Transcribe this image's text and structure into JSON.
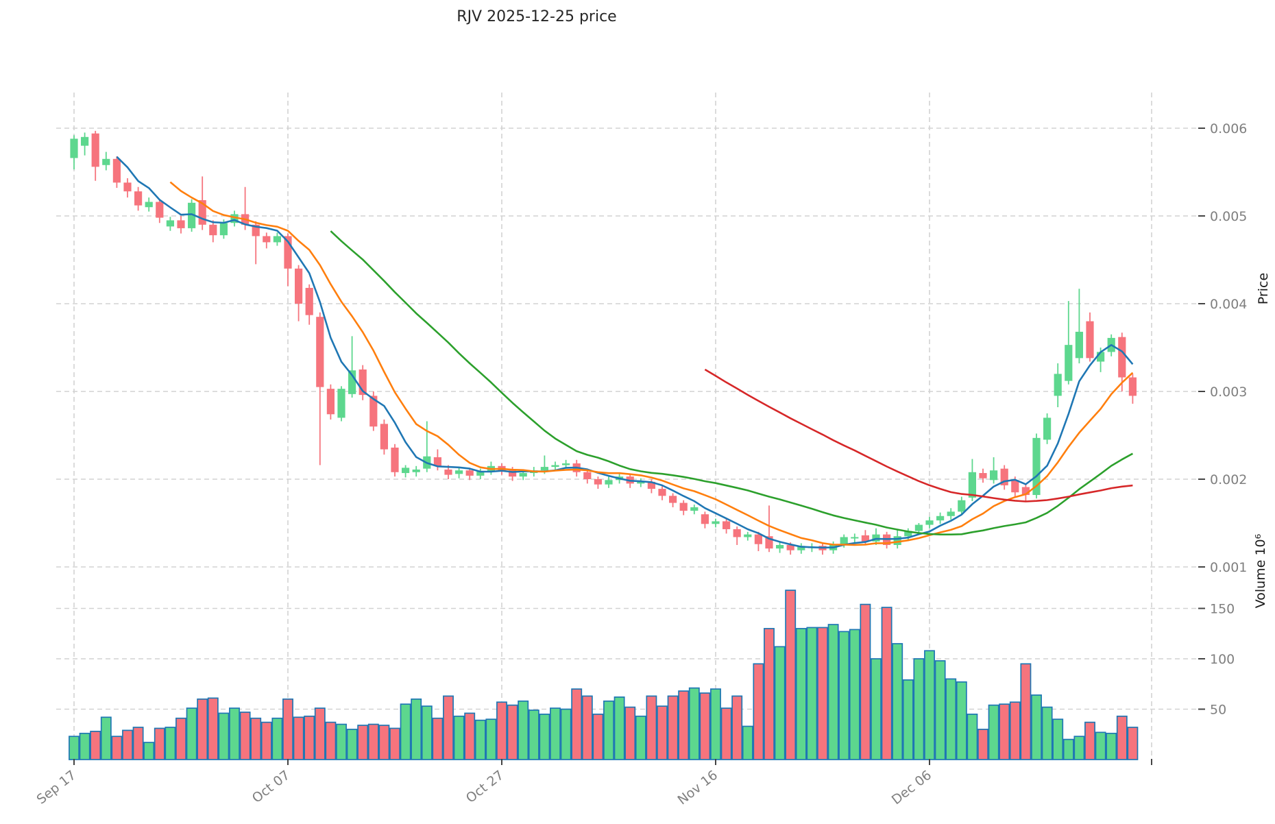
{
  "title": "RJV  2025-12-25  price",
  "chart_data": {
    "type": "candlestick",
    "title": "RJV  2025-12-25  price",
    "ylabel_price": "Price",
    "ylabel_volume": "Volume  10⁶",
    "x_tick_labels": [
      "Sep 17",
      "Oct 07",
      "Oct 27",
      "Nov 16",
      "Dec 06"
    ],
    "x_tick_indices": [
      0,
      20,
      40,
      60,
      80
    ],
    "price_tick_labels": [
      "0.006",
      "0.005",
      "0.004",
      "0.003",
      "0.002",
      "0.001"
    ],
    "price_tick_values": [
      0.006,
      0.005,
      0.004,
      0.003,
      0.002,
      0.001
    ],
    "volume_tick_labels": [
      "150",
      "100",
      "50"
    ],
    "volume_tick_values": [
      150,
      100,
      50
    ],
    "grid": true,
    "legend": "none",
    "x_range_bars": 100,
    "price_axis_range": [
      0.001,
      0.006
    ],
    "open": [
      0.00566,
      0.0058,
      0.00594,
      0.00558,
      0.00565,
      0.00538,
      0.00528,
      0.0051,
      0.00516,
      0.00488,
      0.00495,
      0.00486,
      0.00518,
      0.0049,
      0.00478,
      0.00492,
      0.00502,
      0.0049,
      0.00477,
      0.0047,
      0.00477,
      0.0044,
      0.00418,
      0.00385,
      0.00303,
      0.0027,
      0.00297,
      0.00325,
      0.00295,
      0.00263,
      0.00236,
      0.00207,
      0.00208,
      0.00212,
      0.00225,
      0.00211,
      0.00206,
      0.0021,
      0.00204,
      0.00209,
      0.00215,
      0.0021,
      0.00203,
      0.00207,
      0.0021,
      0.00214,
      0.00216,
      0.00218,
      0.00208,
      0.002,
      0.00194,
      0.00199,
      0.00203,
      0.00195,
      0.00197,
      0.00189,
      0.00181,
      0.00173,
      0.00164,
      0.0016,
      0.00149,
      0.00152,
      0.00143,
      0.00134,
      0.00137,
      0.00135,
      0.00121,
      0.00125,
      0.00119,
      0.00122,
      0.00124,
      0.00119,
      0.00126,
      0.00133,
      0.00136,
      0.00129,
      0.00137,
      0.00125,
      0.00135,
      0.00141,
      0.00148,
      0.00153,
      0.00158,
      0.00163,
      0.00179,
      0.00207,
      0.00199,
      0.00212,
      0.00199,
      0.00191,
      0.00182,
      0.00245,
      0.00295,
      0.00312,
      0.00338,
      0.0038,
      0.00334,
      0.00345,
      0.00362,
      0.00316
    ],
    "high": [
      0.00592,
      0.00595,
      0.00597,
      0.00573,
      0.00568,
      0.00543,
      0.00533,
      0.00521,
      0.00519,
      0.00499,
      0.005,
      0.00519,
      0.00545,
      0.00495,
      0.00496,
      0.00506,
      0.00533,
      0.00494,
      0.00481,
      0.00481,
      0.0048,
      0.00444,
      0.00422,
      0.0039,
      0.00308,
      0.00306,
      0.00363,
      0.0033,
      0.003,
      0.00268,
      0.0024,
      0.00216,
      0.00215,
      0.00266,
      0.00234,
      0.00216,
      0.00213,
      0.00213,
      0.00212,
      0.0022,
      0.00218,
      0.00214,
      0.0021,
      0.00214,
      0.00227,
      0.0022,
      0.00222,
      0.00222,
      0.00211,
      0.00203,
      0.00203,
      0.00207,
      0.00206,
      0.00201,
      0.002,
      0.00192,
      0.00184,
      0.00176,
      0.00171,
      0.00163,
      0.00155,
      0.00155,
      0.00146,
      0.0014,
      0.0014,
      0.0017,
      0.00128,
      0.00128,
      0.00127,
      0.00127,
      0.00127,
      0.00129,
      0.00137,
      0.00138,
      0.00142,
      0.00144,
      0.0014,
      0.00142,
      0.00144,
      0.0015,
      0.00157,
      0.00162,
      0.00167,
      0.0018,
      0.00223,
      0.00212,
      0.00225,
      0.00216,
      0.00203,
      0.00195,
      0.00252,
      0.00275,
      0.00332,
      0.00403,
      0.00417,
      0.0039,
      0.0035,
      0.00365,
      0.00367,
      0.0032
    ],
    "low": [
      0.00553,
      0.00569,
      0.0054,
      0.00552,
      0.00532,
      0.00521,
      0.00506,
      0.00505,
      0.00492,
      0.00483,
      0.0048,
      0.00482,
      0.00484,
      0.0047,
      0.00474,
      0.00488,
      0.00484,
      0.00445,
      0.00463,
      0.00466,
      0.0042,
      0.0038,
      0.00376,
      0.00216,
      0.00268,
      0.00266,
      0.00293,
      0.0029,
      0.00255,
      0.00228,
      0.00203,
      0.00202,
      0.00203,
      0.00208,
      0.0021,
      0.002,
      0.00201,
      0.00199,
      0.002,
      0.00205,
      0.00205,
      0.00198,
      0.00199,
      0.00203,
      0.00206,
      0.0021,
      0.00212,
      0.00203,
      0.00195,
      0.00189,
      0.0019,
      0.00195,
      0.0019,
      0.00191,
      0.00184,
      0.00176,
      0.00168,
      0.00159,
      0.0016,
      0.00144,
      0.00145,
      0.00138,
      0.00125,
      0.0013,
      0.00118,
      0.00117,
      0.00116,
      0.00114,
      0.00115,
      0.00117,
      0.00114,
      0.00115,
      0.00122,
      0.00128,
      0.00125,
      0.00125,
      0.00121,
      0.00121,
      0.00131,
      0.00137,
      0.00144,
      0.00149,
      0.00154,
      0.00159,
      0.00175,
      0.00196,
      0.00195,
      0.00188,
      0.0018,
      0.00175,
      0.00178,
      0.0024,
      0.00282,
      0.00308,
      0.00332,
      0.00334,
      0.00322,
      0.0034,
      0.003,
      0.00286
    ],
    "close": [
      0.00588,
      0.0059,
      0.00556,
      0.00565,
      0.00538,
      0.00528,
      0.00512,
      0.00516,
      0.00498,
      0.00495,
      0.00486,
      0.00515,
      0.0049,
      0.00478,
      0.00492,
      0.00502,
      0.0049,
      0.00477,
      0.0047,
      0.00477,
      0.0044,
      0.004,
      0.00387,
      0.00305,
      0.00274,
      0.00303,
      0.00324,
      0.00296,
      0.0026,
      0.00234,
      0.00208,
      0.00213,
      0.00211,
      0.00226,
      0.00215,
      0.00205,
      0.0021,
      0.00204,
      0.00209,
      0.00215,
      0.0021,
      0.00203,
      0.00207,
      0.0021,
      0.00214,
      0.00216,
      0.00218,
      0.00208,
      0.002,
      0.00194,
      0.00199,
      0.00203,
      0.00195,
      0.00197,
      0.00189,
      0.00181,
      0.00173,
      0.00164,
      0.00168,
      0.00149,
      0.00152,
      0.00143,
      0.00134,
      0.00137,
      0.00126,
      0.00121,
      0.00125,
      0.00119,
      0.00124,
      0.00123,
      0.00119,
      0.00126,
      0.00134,
      0.00134,
      0.00129,
      0.00137,
      0.00125,
      0.00135,
      0.00141,
      0.00148,
      0.00153,
      0.00158,
      0.00163,
      0.00176,
      0.00208,
      0.00201,
      0.0021,
      0.00193,
      0.00185,
      0.00182,
      0.00247,
      0.0027,
      0.0032,
      0.00353,
      0.00368,
      0.00338,
      0.00345,
      0.00361,
      0.00316,
      0.00295
    ],
    "volume": [
      23,
      26,
      28,
      42,
      23,
      29,
      32,
      17,
      31,
      32,
      41,
      51,
      60,
      61,
      46,
      51,
      47,
      41,
      37,
      41,
      60,
      42,
      43,
      51,
      37,
      35,
      30,
      34,
      35,
      34,
      31,
      55,
      60,
      53,
      41,
      63,
      43,
      46,
      39,
      40,
      57,
      54,
      58,
      49,
      45,
      51,
      50,
      70,
      63,
      45,
      58,
      62,
      52,
      43,
      63,
      53,
      63,
      68,
      71,
      66,
      70,
      51,
      63,
      33,
      95,
      130,
      112,
      168,
      130,
      131,
      131,
      134,
      127,
      129,
      154,
      100,
      151,
      115,
      79,
      100,
      108,
      98,
      80,
      77,
      45,
      30,
      54,
      55,
      57,
      95,
      64,
      52,
      40,
      20,
      23,
      37,
      27,
      26,
      43,
      32
    ],
    "ma_windows": [
      5,
      10,
      25,
      60
    ],
    "ma_colors": [
      "#1f77b4",
      "#ff7f0e",
      "#2ca02c",
      "#d62728"
    ],
    "colors": {
      "up": "#5dd78e",
      "down": "#f6747d",
      "volume_edge": "#1f77b4",
      "grid": "#d2d2d2",
      "tick_label": "#7f7f7f",
      "tick_mark": "#444444",
      "background": "#ffffff"
    }
  }
}
